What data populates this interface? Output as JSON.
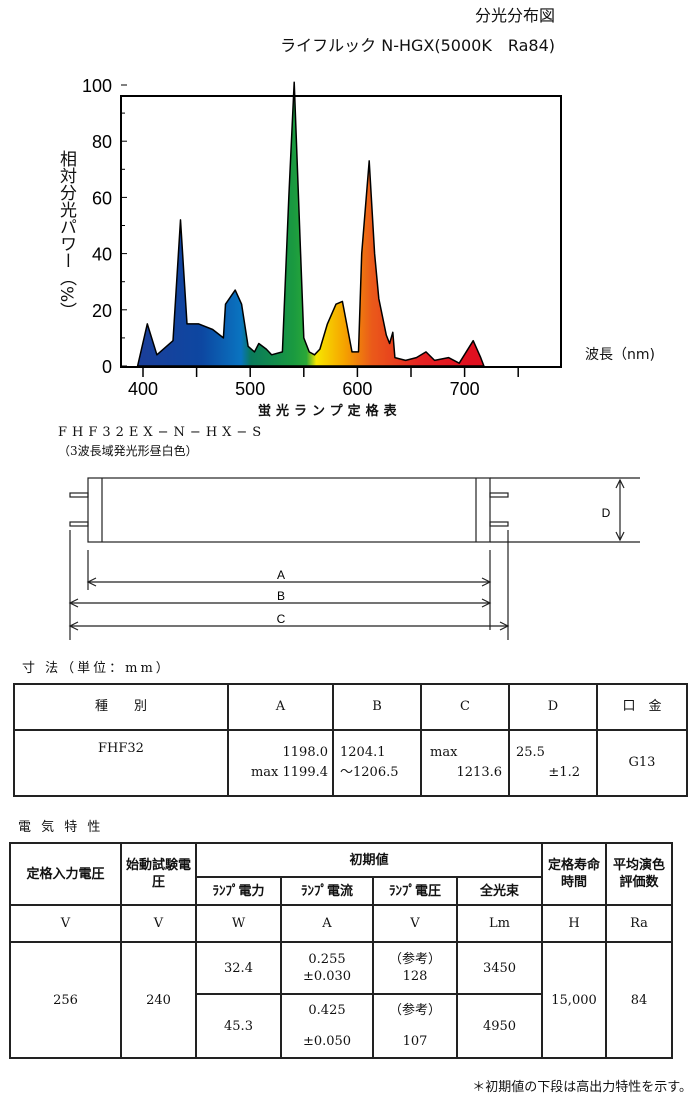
{
  "header": {
    "title": "分光分布図",
    "subtitle": "ライフルック N-HGX(5000K　Ra84)"
  },
  "chart_data": {
    "type": "area",
    "title": "分光分布図",
    "xlabel": "波長（nm)",
    "ylabel": "相対分光パワー（%）",
    "xlim": [
      380,
      790
    ],
    "ylim": [
      0,
      100
    ],
    "xticks": [
      400,
      500,
      600,
      700
    ],
    "yticks": [
      0,
      20,
      40,
      60,
      80,
      100
    ],
    "grid": false,
    "x": [
      395,
      404,
      413,
      428,
      435,
      441,
      452,
      465,
      475,
      477,
      486,
      492,
      498,
      504,
      508,
      515,
      520,
      530,
      536,
      541,
      547,
      550,
      555,
      560,
      565,
      572,
      580,
      586,
      590,
      595,
      601,
      604,
      611,
      616,
      620,
      627,
      630,
      633,
      635,
      645,
      655,
      664,
      672,
      685,
      695,
      708,
      715,
      718
    ],
    "y": [
      0,
      15,
      4,
      9,
      52,
      15,
      15,
      13,
      10,
      22,
      27,
      22,
      7,
      5,
      8,
      6,
      4,
      5,
      60,
      101,
      40,
      10,
      5,
      4,
      6,
      15,
      22,
      23,
      15,
      5,
      5,
      40,
      73,
      40,
      24,
      11,
      8,
      12,
      3,
      2,
      3,
      5,
      2,
      3,
      1,
      9,
      3,
      0
    ]
  },
  "spec": {
    "caption": "蛍光ランプ定格表",
    "model": "FHF32EX−N−HX−S",
    "model_desc": "（3波長域発光形昼白色）"
  },
  "diagram": {
    "labels": [
      "A",
      "B",
      "C",
      "D"
    ]
  },
  "dimensions": {
    "section_title": "寸 法（単位：mm）",
    "headers": [
      "種　　別",
      "A",
      "B",
      "C",
      "D",
      "口　金"
    ],
    "row": {
      "type": "FHF32",
      "A1": "1198.0",
      "A2": "max 1199.4",
      "B1": "1204.1",
      "B2": "〜1206.5",
      "C1": "max",
      "C2": "1213.6",
      "D1": "25.5",
      "D2": "±1.2",
      "base": "G13"
    }
  },
  "electrical": {
    "section_title": "電 気 特 性",
    "h_rated_voltage": "定格入力電圧",
    "h_start_voltage": "始動試験電圧",
    "h_initial": "初期値",
    "h_power": "ﾗﾝﾌﾟ電力",
    "h_current": "ﾗﾝﾌﾟ電流",
    "h_lamp_voltage": "ﾗﾝﾌﾟ電圧",
    "h_flux": "全光束",
    "h_life": "定格寿命時間",
    "h_ra": "平均演色評価数",
    "units": [
      "V",
      "V",
      "W",
      "A",
      "V",
      "Lm",
      "H",
      "Ra"
    ],
    "rated_voltage": "256",
    "start_voltage": "240",
    "rows": [
      {
        "power": "32.4",
        "current": "0.255",
        "current_tol": "±0.030",
        "ref": "（参考）",
        "lamp_voltage": "128",
        "flux": "3450"
      },
      {
        "power": "45.3",
        "current": "0.425",
        "current_tol": "±0.050",
        "ref": "（参考）",
        "lamp_voltage": "107",
        "flux": "4950"
      }
    ],
    "life": "15,000",
    "ra": "84",
    "footnote": "＊初期値の下段は高出力特性を示す。"
  }
}
